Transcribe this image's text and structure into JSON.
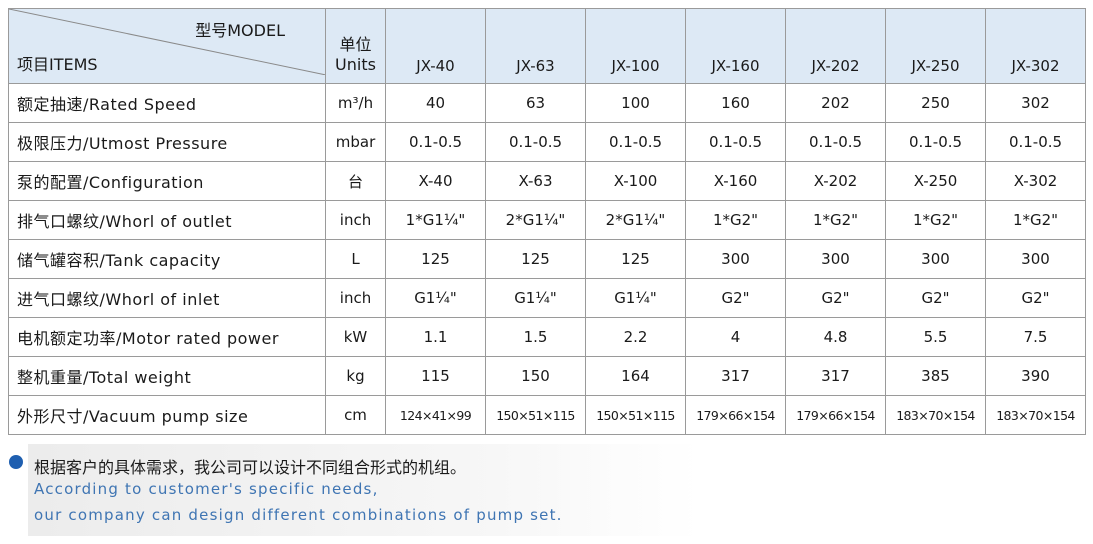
{
  "header": {
    "model_label": "型号MODEL",
    "items_label": "项目ITEMS",
    "unit_label_zh": "单位",
    "unit_label_en": "Units",
    "models": [
      "JX-40",
      "JX-63",
      "JX-100",
      "JX-160",
      "JX-202",
      "JX-250",
      "JX-302"
    ]
  },
  "rows": [
    {
      "item": "额定抽速/Rated Speed",
      "unit": "m³/h",
      "values": [
        "40",
        "63",
        "100",
        "160",
        "202",
        "250",
        "302"
      ]
    },
    {
      "item": "极限压力/Utmost Pressure",
      "unit": "mbar",
      "values": [
        "0.1-0.5",
        "0.1-0.5",
        "0.1-0.5",
        "0.1-0.5",
        "0.1-0.5",
        "0.1-0.5",
        "0.1-0.5"
      ]
    },
    {
      "item": "泵的配置/Configuration",
      "unit": "台",
      "values": [
        "X-40",
        "X-63",
        "X-100",
        "X-160",
        "X-202",
        "X-250",
        "X-302"
      ]
    },
    {
      "item": "排气口螺纹/Whorl of outlet",
      "unit": "inch",
      "values": [
        "1*G1¼\"",
        "2*G1¼\"",
        "2*G1¼\"",
        "1*G2\"",
        "1*G2\"",
        "1*G2\"",
        "1*G2\""
      ]
    },
    {
      "item": "储气罐容积/Tank capacity",
      "unit": "L",
      "values": [
        "125",
        "125",
        "125",
        "300",
        "300",
        "300",
        "300"
      ]
    },
    {
      "item": "进气口螺纹/Whorl of inlet",
      "unit": "inch",
      "values": [
        "G1¼\"",
        "G1¼\"",
        "G1¼\"",
        "G2\"",
        "G2\"",
        "G2\"",
        "G2\""
      ]
    },
    {
      "item": "电机额定功率/Motor rated power",
      "unit": "kW",
      "values": [
        "1.1",
        "1.5",
        "2.2",
        "4",
        "4.8",
        "5.5",
        "7.5"
      ]
    },
    {
      "item": "整机重量/Total weight",
      "unit": "kg",
      "values": [
        "115",
        "150",
        "164",
        "317",
        "317",
        "385",
        "390"
      ]
    },
    {
      "item": "外形尺寸/Vacuum pump size",
      "unit": "cm",
      "values": [
        "124×41×99",
        "150×51×115",
        "150×51×115",
        "179×66×154",
        "179×66×154",
        "183×70×154",
        "183×70×154"
      ]
    }
  ],
  "note": {
    "zh": "根据客户的具体需求，我公司可以设计不同组合形式的机组。",
    "en_lines": [
      "According to customer's specific needs,",
      "our company can design different combinations of pump set."
    ]
  }
}
